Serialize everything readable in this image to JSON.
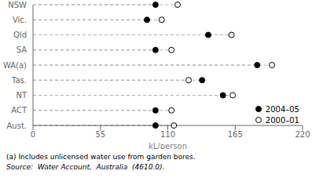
{
  "chart_data": {
    "type": "dot",
    "categories": [
      "NSW",
      "Vic.",
      "Qld",
      "SA",
      "WA(a)",
      "Tas.",
      "NT",
      "ACT",
      "Aust."
    ],
    "series": [
      {
        "name": "2004–05",
        "color": "#000000",
        "marker": "o",
        "values": [
          100,
          93,
          143,
          100,
          183,
          138,
          155,
          100,
          100
        ]
      },
      {
        "name": "2000–01",
        "color": "#ffffff",
        "marker": "o",
        "values": [
          118,
          105,
          162,
          113,
          195,
          127,
          163,
          113,
          115
        ]
      }
    ],
    "xlabel": "kL/person",
    "xlim": [
      0,
      220
    ],
    "xticks": [
      0,
      55,
      110,
      165,
      220
    ],
    "line_style": "dashed",
    "legend": "lower right",
    "grid": false,
    "annotations": [
      "(a) Includes unlicensed water use from garden bores.",
      "Source:  Water Account,  Australia  (4610.0)."
    ]
  }
}
